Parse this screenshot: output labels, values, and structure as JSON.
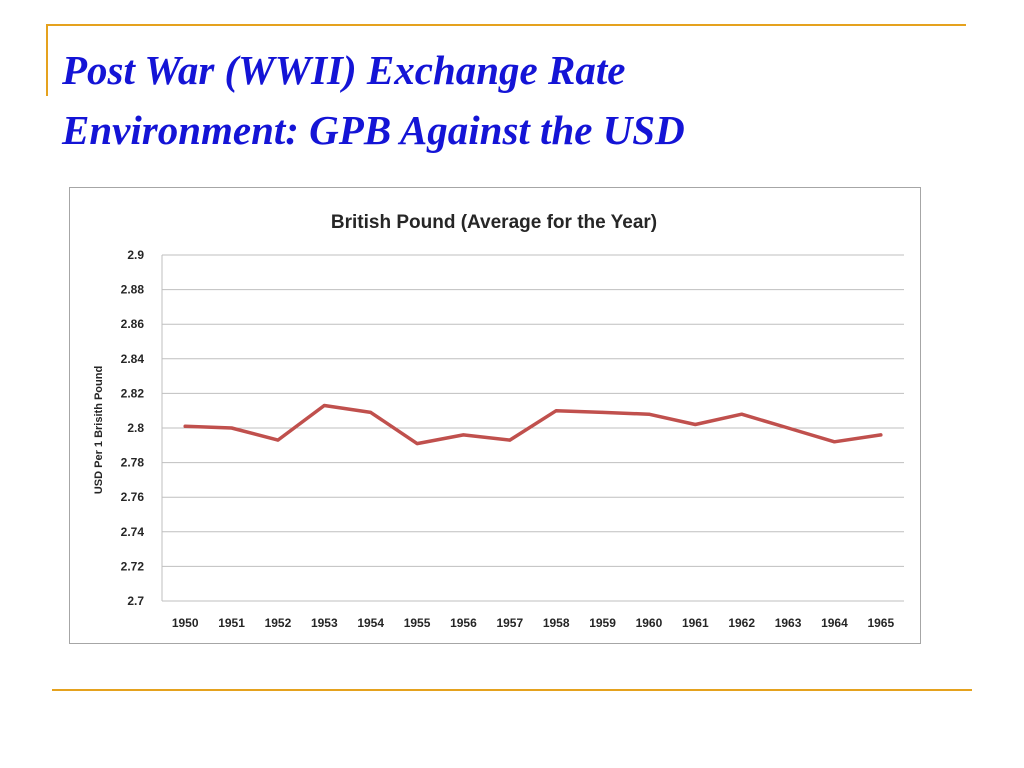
{
  "slide": {
    "title_line1": "Post War (WWII) Exchange Rate",
    "title_line2": "Environment:  GPB Against the USD"
  },
  "colors": {
    "accent": "#e5a21e",
    "title": "#1414d6",
    "series": "#c0504d",
    "grid": "#bfbfbf"
  },
  "chart_data": {
    "type": "line",
    "title": "British Pound (Average for the Year)",
    "xlabel": "",
    "ylabel": "USD Per 1 Brisith Pound",
    "categories": [
      "1950",
      "1951",
      "1952",
      "1953",
      "1954",
      "1955",
      "1956",
      "1957",
      "1958",
      "1959",
      "1960",
      "1961",
      "1962",
      "1963",
      "1964",
      "1965"
    ],
    "series": [
      {
        "values": [
          2.801,
          2.8,
          2.793,
          2.813,
          2.809,
          2.791,
          2.796,
          2.793,
          2.81,
          2.809,
          2.808,
          2.802,
          2.808,
          2.8,
          2.792,
          2.796
        ]
      }
    ],
    "ylim": [
      2.7,
      2.9
    ],
    "yticks": [
      "2.7",
      "2.72",
      "2.74",
      "2.76",
      "2.78",
      "2.8",
      "2.82",
      "2.84",
      "2.86",
      "2.88",
      "2.9"
    ],
    "grid": true,
    "legend": "none"
  }
}
